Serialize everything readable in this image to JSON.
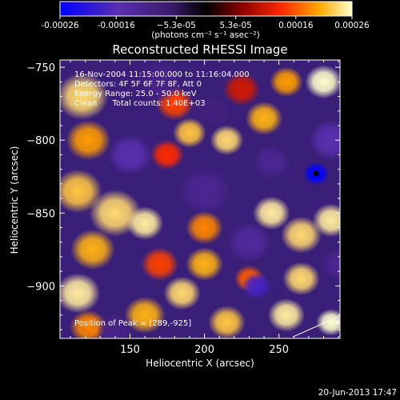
{
  "chart_data": {
    "type": "heatmap",
    "title": "Reconstructed RHESSI Image",
    "xlabel": "Heliocentric X (arcsec)",
    "ylabel": "Heliocentric Y (arcsec)",
    "xlim": [
      103,
      291
    ],
    "ylim": [
      -936,
      -745
    ],
    "x_ticks": [
      150,
      200,
      250
    ],
    "y_ticks": [
      -750,
      -800,
      -850,
      -900
    ],
    "x_tick_labels": [
      "150",
      "200",
      "250"
    ],
    "y_tick_labels": [
      "−750",
      "−800",
      "−850",
      "−900"
    ],
    "colorbar": {
      "min": -0.00026,
      "max": 0.00026,
      "ticks": [
        -0.00026,
        -0.00016,
        -5.3e-05,
        5.3e-05,
        0.00016,
        0.00026
      ],
      "tick_labels": [
        "-0.00026",
        "-0.00016",
        "−5.3e-05",
        "5.3e-05",
        "0.00016",
        "0.00026"
      ],
      "unit_label": "(photons cm⁻² s⁻¹ asec⁻²)",
      "colormap": [
        "#0000ff",
        "#5a2fb0",
        "#3a1a6a",
        "#000000",
        "#8a0000",
        "#ff2a00",
        "#ffaa00",
        "#ffffcc"
      ]
    },
    "annotations": [
      "16-Nov-2004 11:15:00.000 to 11:16:04.000",
      "Detectors: 4F 5F 6F 7F 8F, Att 0",
      "Energy Range: 25.0 - 50.0 keV",
      "Clean      Total counts: 1.40E+03"
    ],
    "peak_label": "Position of Peak = [289,-925]",
    "peak": {
      "x": 289,
      "y": -925
    },
    "min_marker": {
      "x": 275,
      "y": -823
    },
    "blobs": [
      {
        "x": 118,
        "y": -770,
        "v": 0.9,
        "s": 14
      },
      {
        "x": 122,
        "y": -800,
        "v": 0.75,
        "s": 12
      },
      {
        "x": 115,
        "y": -835,
        "v": 0.85,
        "s": 13
      },
      {
        "x": 140,
        "y": -850,
        "v": 0.9,
        "s": 14
      },
      {
        "x": 160,
        "y": -857,
        "v": 0.95,
        "s": 10
      },
      {
        "x": 125,
        "y": -875,
        "v": 0.8,
        "s": 12
      },
      {
        "x": 115,
        "y": -905,
        "v": 0.95,
        "s": 12
      },
      {
        "x": 122,
        "y": -928,
        "v": 0.7,
        "s": 10
      },
      {
        "x": 180,
        "y": -775,
        "v": 0.55,
        "s": 10
      },
      {
        "x": 190,
        "y": -795,
        "v": 0.85,
        "s": 9
      },
      {
        "x": 175,
        "y": -810,
        "v": 0.5,
        "s": 9
      },
      {
        "x": 215,
        "y": -800,
        "v": 0.9,
        "s": 9
      },
      {
        "x": 240,
        "y": -785,
        "v": 0.8,
        "s": 10
      },
      {
        "x": 255,
        "y": -760,
        "v": 0.75,
        "s": 9
      },
      {
        "x": 280,
        "y": -760,
        "v": 1.0,
        "s": 10
      },
      {
        "x": 200,
        "y": -860,
        "v": 0.7,
        "s": 10
      },
      {
        "x": 200,
        "y": -885,
        "v": 0.8,
        "s": 10
      },
      {
        "x": 245,
        "y": -850,
        "v": 0.95,
        "s": 10
      },
      {
        "x": 265,
        "y": -865,
        "v": 0.9,
        "s": 11
      },
      {
        "x": 285,
        "y": -855,
        "v": 0.95,
        "s": 10
      },
      {
        "x": 265,
        "y": -895,
        "v": 0.9,
        "s": 10
      },
      {
        "x": 255,
        "y": -920,
        "v": 0.95,
        "s": 10
      },
      {
        "x": 170,
        "y": -885,
        "v": 0.55,
        "s": 10
      },
      {
        "x": 160,
        "y": -920,
        "v": 0.8,
        "s": 11
      },
      {
        "x": 185,
        "y": -905,
        "v": 0.9,
        "s": 10
      },
      {
        "x": 215,
        "y": -925,
        "v": 0.85,
        "s": 10
      },
      {
        "x": 230,
        "y": -895,
        "v": 0.6,
        "s": 8
      },
      {
        "x": 285,
        "y": -925,
        "v": 1.0,
        "s": 8
      },
      {
        "x": 225,
        "y": -765,
        "v": 0.4,
        "s": 10
      },
      {
        "x": 150,
        "y": -810,
        "v": -0.6,
        "s": 12
      },
      {
        "x": 235,
        "y": -900,
        "v": -0.7,
        "s": 8
      },
      {
        "x": 275,
        "y": -823,
        "v": -1.0,
        "s": 7
      },
      {
        "x": 285,
        "y": -800,
        "v": -0.6,
        "s": 12
      },
      {
        "x": 200,
        "y": -835,
        "v": -0.45,
        "s": 14
      },
      {
        "x": 245,
        "y": -815,
        "v": -0.45,
        "s": 10
      },
      {
        "x": 230,
        "y": -870,
        "v": -0.5,
        "s": 12
      },
      {
        "x": 170,
        "y": -760,
        "v": -0.4,
        "s": 12
      },
      {
        "x": 205,
        "y": -780,
        "v": -0.35,
        "s": 10
      },
      {
        "x": 140,
        "y": -930,
        "v": -0.4,
        "s": 10
      },
      {
        "x": 290,
        "y": -885,
        "v": -0.45,
        "s": 9
      }
    ]
  },
  "footer": {
    "date": "20-Jun-2013 17:47"
  }
}
